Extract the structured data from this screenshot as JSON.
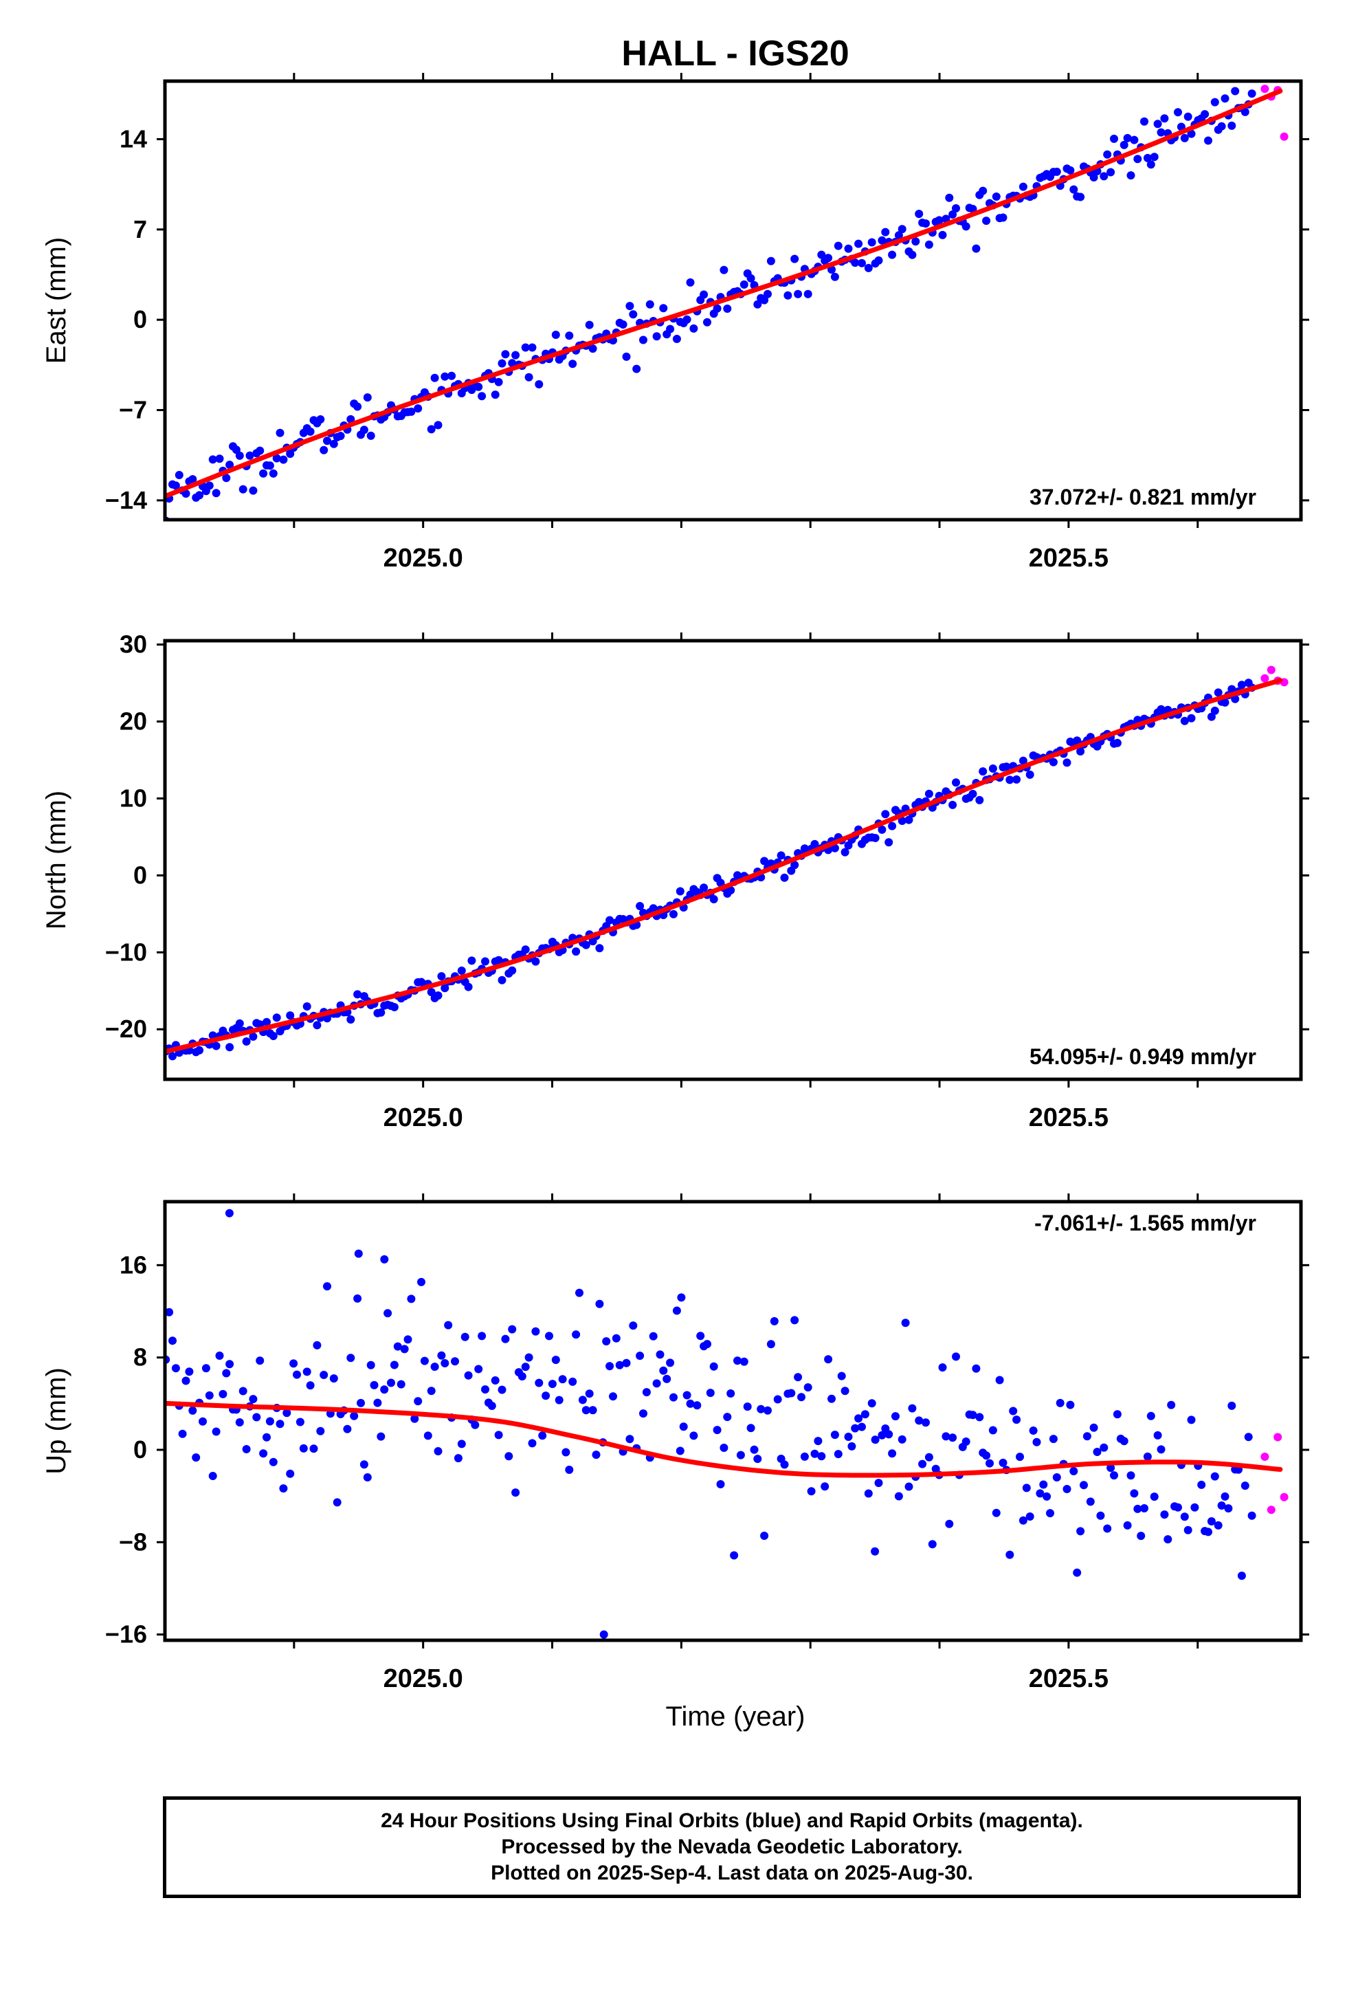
{
  "title": "HALL - IGS20",
  "colors": {
    "final_orbits": "#0000ff",
    "rapid_orbits": "#ff00ff",
    "fit_line": "#ff0000",
    "frame": "#000000"
  },
  "chart_data": [
    {
      "type": "scatter",
      "panel": "east",
      "ylabel": "East (mm)",
      "xlabel": "",
      "xlim": [
        2024.8,
        2025.68
      ],
      "ylim": [
        -15.5,
        18.5
      ],
      "yticks": [
        -14,
        -7,
        0,
        7,
        14
      ],
      "ytick_labels": [
        "−14",
        "−7",
        "0",
        "7",
        "14"
      ],
      "xtick_labels": [
        {
          "value": 2025.0,
          "label": "2025.0"
        },
        {
          "value": 2025.5,
          "label": "2025.5"
        }
      ],
      "minor_xticks": [
        2024.9,
        2025.0,
        2025.1,
        2025.2,
        2025.3,
        2025.4,
        2025.5,
        2025.6
      ],
      "grid": false,
      "legend": "none",
      "rate_annotation": "37.072+/- 0.821 mm/yr",
      "rate_position": "bottom-right",
      "series": [
        {
          "name": "Final Orbits",
          "role": "final",
          "x_range": [
            2024.785,
            2025.642
          ],
          "n": 330,
          "trend": {
            "base": -14.3,
            "rate": 37.072,
            "seasonal": [
              0.6,
              0.5
            ],
            "noise": 0.9
          }
        },
        {
          "name": "Rapid Orbits",
          "role": "rapid",
          "x": [
            2025.652,
            2025.657,
            2025.662,
            2025.667
          ],
          "y": [
            17.9,
            17.3,
            17.8,
            14.2
          ]
        }
      ],
      "fit": {
        "start": [
          2024.785,
          -14.3
        ],
        "rate": 37.072,
        "seasonal": [
          0.6,
          0.5
        ],
        "x_end": 2025.664
      }
    },
    {
      "type": "scatter",
      "panel": "north",
      "ylabel": "North (mm)",
      "xlabel": "",
      "xlim": [
        2024.8,
        2025.68
      ],
      "ylim": [
        -26.5,
        30.5
      ],
      "yticks": [
        -20,
        -10,
        0,
        10,
        20,
        30
      ],
      "ytick_labels": [
        "−20",
        "−10",
        "0",
        "10",
        "20",
        "30"
      ],
      "xtick_labels": [
        {
          "value": 2025.0,
          "label": "2025.0"
        },
        {
          "value": 2025.5,
          "label": "2025.5"
        }
      ],
      "minor_xticks": [
        2024.9,
        2025.0,
        2025.1,
        2025.2,
        2025.3,
        2025.4,
        2025.5,
        2025.6
      ],
      "grid": false,
      "legend": "none",
      "rate_annotation": "54.095+/- 0.949 mm/yr",
      "rate_position": "bottom-right",
      "series": [
        {
          "name": "Final Orbits",
          "role": "final",
          "x_range": [
            2024.785,
            2025.642
          ],
          "n": 330,
          "trend": {
            "base": -23.5,
            "rate": 54.095,
            "seasonal": [
              -2.2,
              0.8
            ],
            "noise": 0.8
          }
        },
        {
          "name": "Rapid Orbits",
          "role": "rapid",
          "x": [
            2025.652,
            2025.657,
            2025.662,
            2025.667
          ],
          "y": [
            25.6,
            26.7,
            25.3,
            25.1
          ]
        }
      ],
      "fit": {
        "start": [
          2024.785,
          -23.5
        ],
        "rate": 54.095,
        "seasonal": [
          -2.2,
          0.8
        ],
        "x_end": 2025.664
      }
    },
    {
      "type": "scatter",
      "panel": "up",
      "ylabel": "Up (mm)",
      "xlabel": "Time (year)",
      "xlim": [
        2024.8,
        2025.68
      ],
      "ylim": [
        -16.5,
        21.5
      ],
      "yticks": [
        -16,
        -8,
        0,
        8,
        16
      ],
      "ytick_labels": [
        "−16",
        "−8",
        "0",
        "8",
        "16"
      ],
      "xtick_labels": [
        {
          "value": 2025.0,
          "label": "2025.0"
        },
        {
          "value": 2025.5,
          "label": "2025.5"
        }
      ],
      "minor_xticks": [
        2024.9,
        2025.0,
        2025.1,
        2025.2,
        2025.3,
        2025.4,
        2025.5,
        2025.6
      ],
      "grid": false,
      "legend": "none",
      "rate_annotation": "-7.061+/- 1.565 mm/yr",
      "rate_position": "top-right",
      "series": [
        {
          "name": "Final Orbits",
          "role": "final",
          "x_range": [
            2024.785,
            2025.642
          ],
          "n": 330,
          "trend": {
            "base": 4.0,
            "rate": -7.061,
            "seasonal": [
              2.3,
              -1.2
            ],
            "noise": 4.0
          },
          "outliers": [
            {
              "x": 2024.85,
              "y": 20.5
            },
            {
              "x": 2024.95,
              "y": 17.0
            },
            {
              "x": 2024.97,
              "y": 16.5
            },
            {
              "x": 2025.2,
              "y": 13.2
            },
            {
              "x": 2025.14,
              "y": -16.0
            },
            {
              "x": 2025.35,
              "y": -8.8
            }
          ]
        },
        {
          "name": "Rapid Orbits",
          "role": "rapid",
          "x": [
            2025.652,
            2025.657,
            2025.662,
            2025.667
          ],
          "y": [
            -0.6,
            -5.2,
            1.1,
            -4.1
          ]
        }
      ],
      "fit": {
        "points": [
          [
            2024.785,
            4.1
          ],
          [
            2024.85,
            3.8
          ],
          [
            2024.95,
            3.4
          ],
          [
            2025.05,
            2.6
          ],
          [
            2025.12,
            1.1
          ],
          [
            2025.2,
            -0.9
          ],
          [
            2025.28,
            -2.0
          ],
          [
            2025.36,
            -2.2
          ],
          [
            2025.44,
            -1.9
          ],
          [
            2025.52,
            -1.2
          ],
          [
            2025.6,
            -1.1
          ],
          [
            2025.664,
            -1.7
          ]
        ]
      }
    }
  ],
  "footer": {
    "line1": "24 Hour Positions Using Final Orbits (blue) and Rapid Orbits (magenta).",
    "line2": "Processed by the Nevada Geodetic Laboratory.",
    "line3": "Plotted on 2025-Sep-4. Last data on 2025-Aug-30."
  }
}
